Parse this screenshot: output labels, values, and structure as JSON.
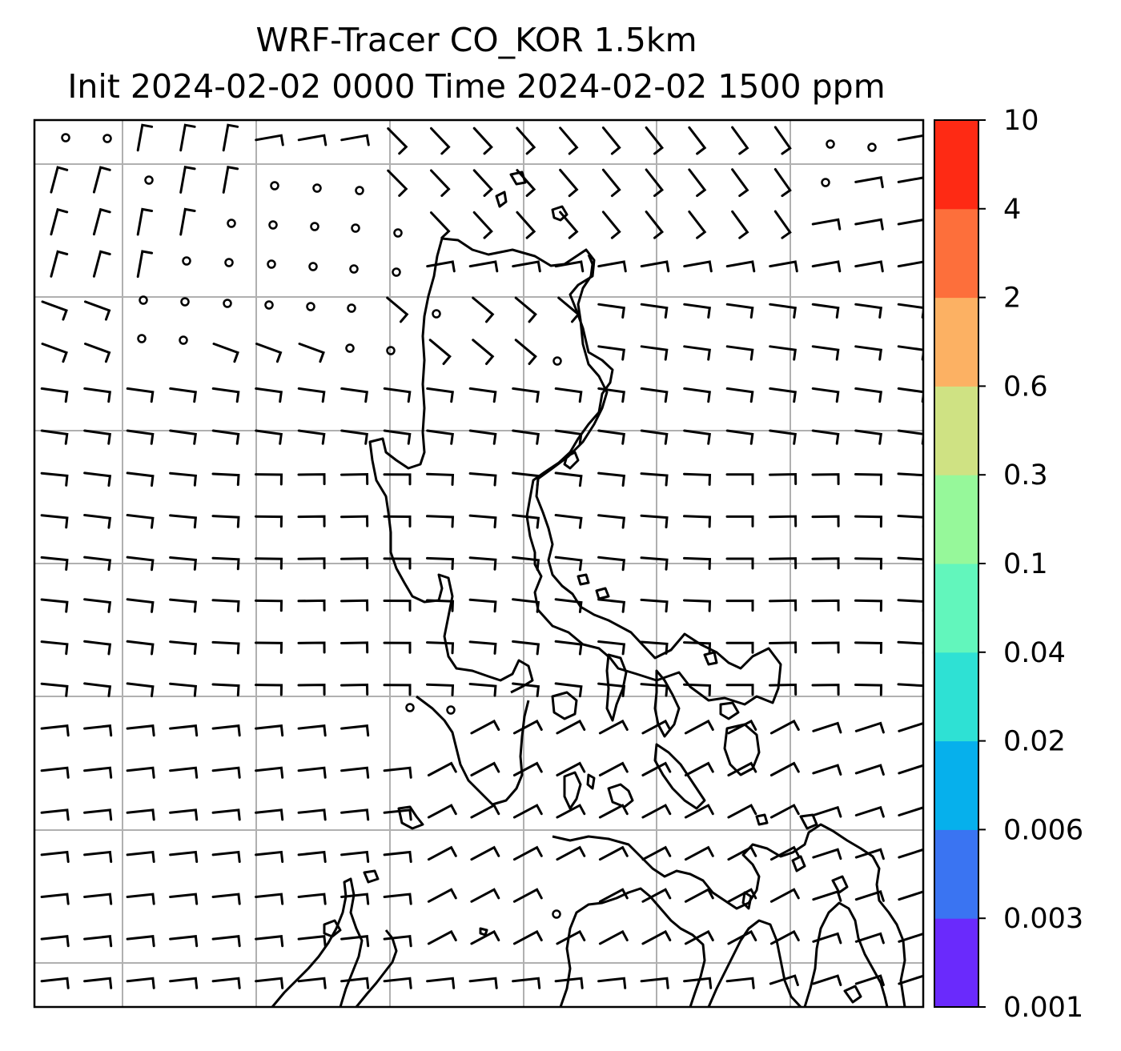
{
  "title": {
    "line1": "WRF-Tracer CO_KOR 1.5km",
    "line2": "Init 2024-02-02 0000 Time 2024-02-02 1500 ppm"
  },
  "colorbar": {
    "levels": [
      "0.001",
      "0.003",
      "0.006",
      "0.02",
      "0.04",
      "0.1",
      "0.3",
      "0.6",
      "2",
      "4",
      "10"
    ],
    "colors": [
      "#6a2afc",
      "#3a74f2",
      "#06b0ec",
      "#2ee1d4",
      "#62f6bc",
      "#96f89a",
      "#cfe283",
      "#fcb163",
      "#fd6f3b",
      "#fe2a14"
    ]
  },
  "map": {
    "projection_grid_lines": 7,
    "coastline_color": "#000000",
    "gridline_color": "#b0b0b0"
  }
}
